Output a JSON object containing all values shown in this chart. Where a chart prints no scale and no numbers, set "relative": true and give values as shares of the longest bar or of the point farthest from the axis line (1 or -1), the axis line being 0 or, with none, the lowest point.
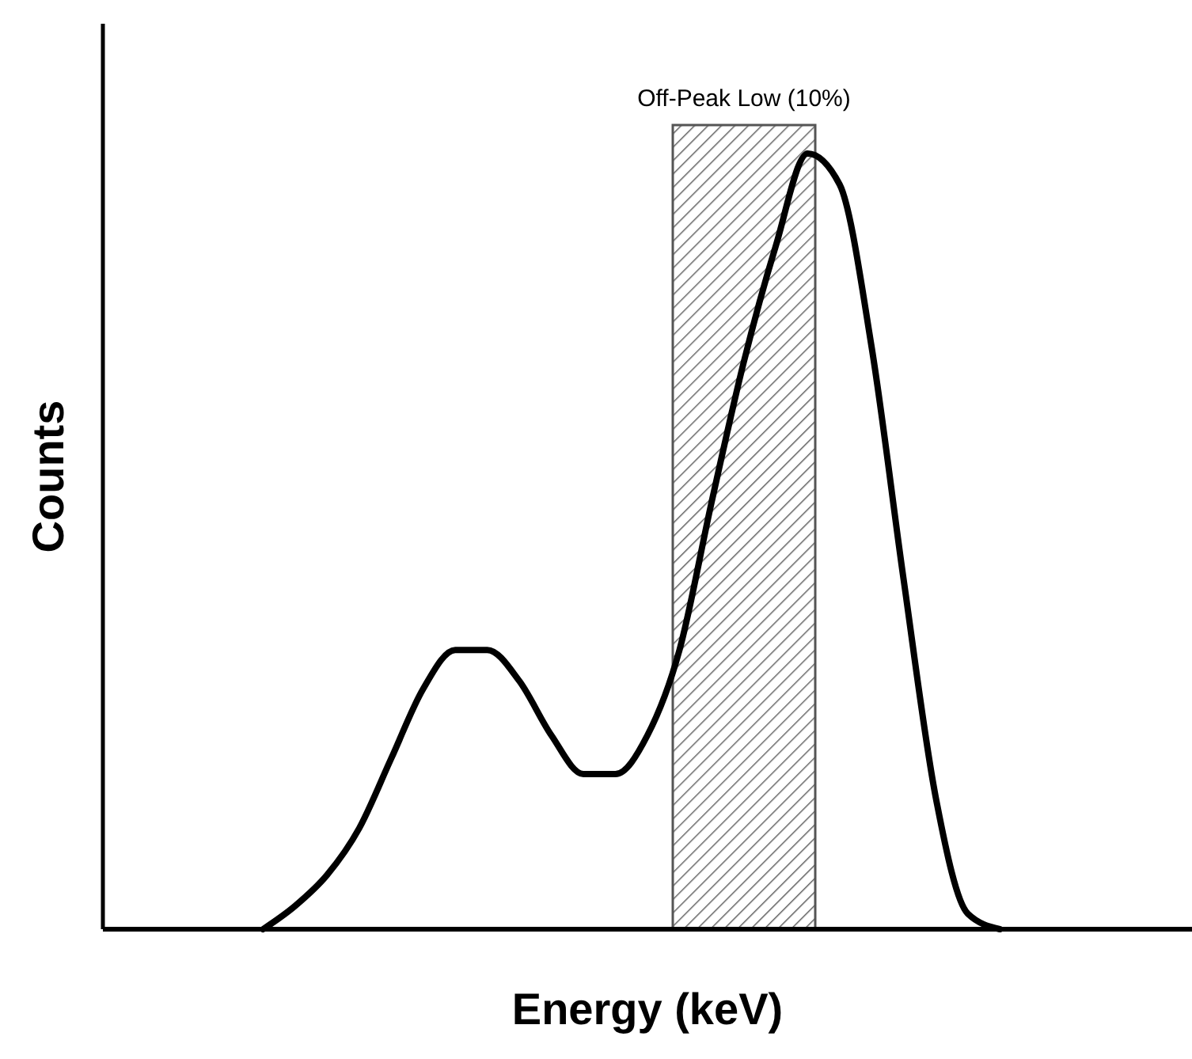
{
  "chart_data": {
    "type": "line",
    "relative": true,
    "xlabel": "Energy (keV)",
    "ylabel": "Counts",
    "line_style": "solid",
    "categories": [
      null,
      null,
      null,
      null,
      null,
      null,
      null,
      null,
      null,
      null,
      null,
      null,
      null,
      null,
      null,
      null,
      null,
      null,
      null,
      null,
      null,
      null,
      null,
      null,
      null,
      null,
      null,
      null,
      null,
      null,
      null,
      null,
      null,
      null,
      null
    ],
    "series": [
      {
        "color": "#000000",
        "values": [
          null,
          null,
          null,
          null,
          null,
          0,
          0.03,
          0.07,
          0.13,
          0.22,
          0.31,
          0.36,
          0.36,
          0.32,
          0.25,
          0.2,
          0.2,
          0.25,
          0.36,
          0.55,
          0.73,
          0.88,
          1,
          0.96,
          0.75,
          0.45,
          0.17,
          0.02,
          0,
          null,
          null,
          null,
          null,
          null,
          null
        ]
      }
    ],
    "annotations": [
      "Off-Peak Low (10%)"
    ]
  }
}
